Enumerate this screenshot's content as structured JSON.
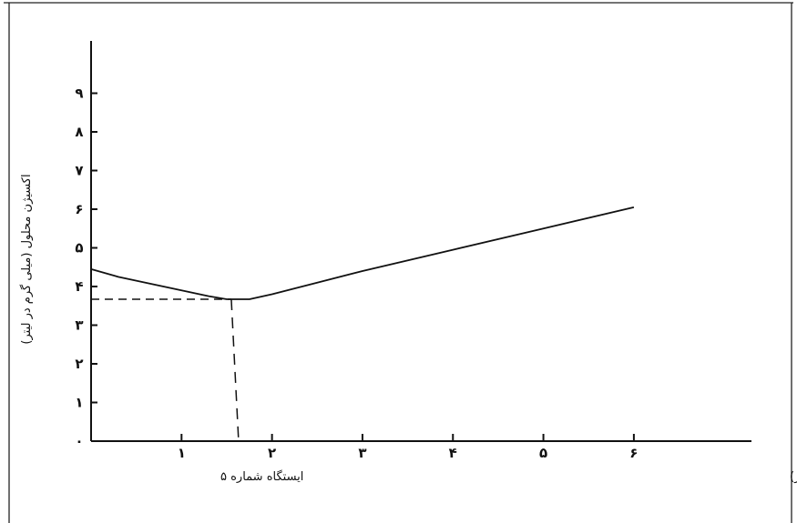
{
  "chart_data": {
    "type": "line",
    "title": "",
    "ylabel": "اکسیژن محلول (میلی گرم در لیتر)",
    "xlabel": "مساحت (کیلومتر)",
    "station_label": "ایستگاه شماره ۵",
    "x_ticks": [
      {
        "value": 0,
        "label": ""
      },
      {
        "value": 1,
        "label": "۱"
      },
      {
        "value": 2,
        "label": "۲"
      },
      {
        "value": 3,
        "label": "۳"
      },
      {
        "value": 4,
        "label": "۴"
      },
      {
        "value": 5,
        "label": "۵"
      },
      {
        "value": 6,
        "label": "۶"
      }
    ],
    "y_ticks": [
      {
        "value": 0,
        "label": "۰"
      },
      {
        "value": 1,
        "label": "۱"
      },
      {
        "value": 2,
        "label": "۲"
      },
      {
        "value": 3,
        "label": "۳"
      },
      {
        "value": 4,
        "label": "۴"
      },
      {
        "value": 5,
        "label": "۵"
      },
      {
        "value": 6,
        "label": "۶"
      },
      {
        "value": 7,
        "label": "۷"
      },
      {
        "value": 8,
        "label": "۸"
      },
      {
        "value": 9,
        "label": "۹"
      }
    ],
    "xlim": [
      0,
      7.3
    ],
    "ylim": [
      0,
      10
    ],
    "grid": false,
    "series": [
      {
        "x": [
          0,
          0.3,
          0.7,
          1.0,
          1.3,
          1.5,
          1.75,
          2.0,
          2.5,
          3.0,
          4.0,
          5.0,
          6.0
        ],
        "y": [
          4.45,
          4.25,
          4.05,
          3.9,
          3.75,
          3.67,
          3.67,
          3.8,
          4.1,
          4.4,
          4.95,
          5.5,
          6.05
        ]
      }
    ],
    "reference_point": {
      "x": 1.55,
      "y": 3.67
    },
    "colors": {
      "line": "#111111",
      "axis": "#111111",
      "background": "#ffffff"
    }
  }
}
